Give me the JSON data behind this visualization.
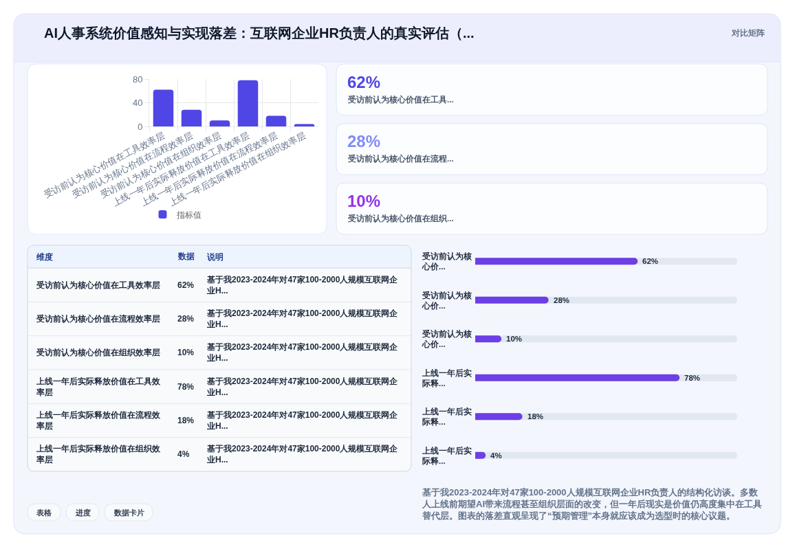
{
  "chart_data": [
    {
      "type": "other",
      "title": "AI人事系统价值感知与实现落差：互联网企业HR负责人的真实评估（...",
      "annotations": [
        "对比矩阵"
      ]
    },
    {
      "type": "bar",
      "categories": [
        "受访前认为核心价值在工具效率层",
        "受访前认为核心价值在流程效率层",
        "受访前认为核心价值在组织效率层",
        "上线一年后实际释放价值在工具效率层",
        "上线一年后实际释放价值在流程效率层",
        "上线一年后实际释放价值在组织效率层"
      ],
      "series": [
        {
          "name": "指标值",
          "color": "#4f46e5",
          "values": [
            62,
            28,
            10,
            78,
            18,
            4
          ]
        }
      ],
      "ylim": [
        0,
        80
      ],
      "yticks": [
        0,
        40,
        80
      ],
      "grid": true,
      "legend": "bottom"
    },
    {
      "type": "other",
      "title": "62%",
      "subtitle": "受访前认为核心价值在工具...",
      "color": "#4f46e5"
    },
    {
      "type": "other",
      "title": "28%",
      "subtitle": "受访前认为核心价值在流程...",
      "color": "#818cf8"
    },
    {
      "type": "other",
      "title": "10%",
      "subtitle": "受访前认为核心价值在组织...",
      "color": "#9333ea"
    },
    {
      "type": "other",
      "categories": [
        "受访前认为核心价值在工具效率层",
        "受访前认为核心价值在流程效率层",
        "受访前认为核心价值在组织效率层",
        "上线一年后实际释放价值在工具效率层",
        "上线一年后实际释放价值在流程效率层",
        "上线一年后实际释放价值在组织效率层"
      ],
      "value_labels": [
        "62%",
        "28%",
        "10%",
        "78%",
        "18%",
        "4%"
      ],
      "annotations": [
        "维度",
        "数据",
        "说明",
        "基于我2023-2024年对47家100-2000人规模互联网企业H...",
        "基于我2023-2024年对47家100-2000人规模互联网企业H...",
        "基于我2023-2024年对47家100-2000人规模互联网企业H...",
        "基于我2023-2024年对47家100-2000人规模互联网企业H...",
        "基于我2023-2024年对47家100-2000人规模互联网企业H...",
        "基于我2023-2024年对47家100-2000人规模互联网企业H..."
      ]
    },
    {
      "type": "bar",
      "orientation": "horizontal",
      "categories": [
        "受访前认为核心价...",
        "受访前认为核心价...",
        "受访前认为核心价...",
        "上线一年后实际释...",
        "上线一年后实际释...",
        "上线一年后实际释..."
      ],
      "values": [
        62,
        28,
        10,
        78,
        18,
        4
      ],
      "color": "#6d3fe6",
      "xlim": [
        0,
        100
      ],
      "value_labels": [
        "62%",
        "28%",
        "10%",
        "78%",
        "18%",
        "4%"
      ],
      "tick_labels": "y",
      "annotations": [
        "基于我2023-2024年对47家100-2000人规模互联网企业HR负责人的结构化访谈。多数人上线前期望AI带来流程甚至组织层面的改变，但一年后现实是价值仍高度集中在工具替代层。图表的落差直观呈现了“预期管理”本身就应该成为选型时的核心议题。"
      ]
    },
    {
      "type": "other",
      "annotations": [
        "表格",
        "进度",
        "数据卡片"
      ]
    }
  ]
}
